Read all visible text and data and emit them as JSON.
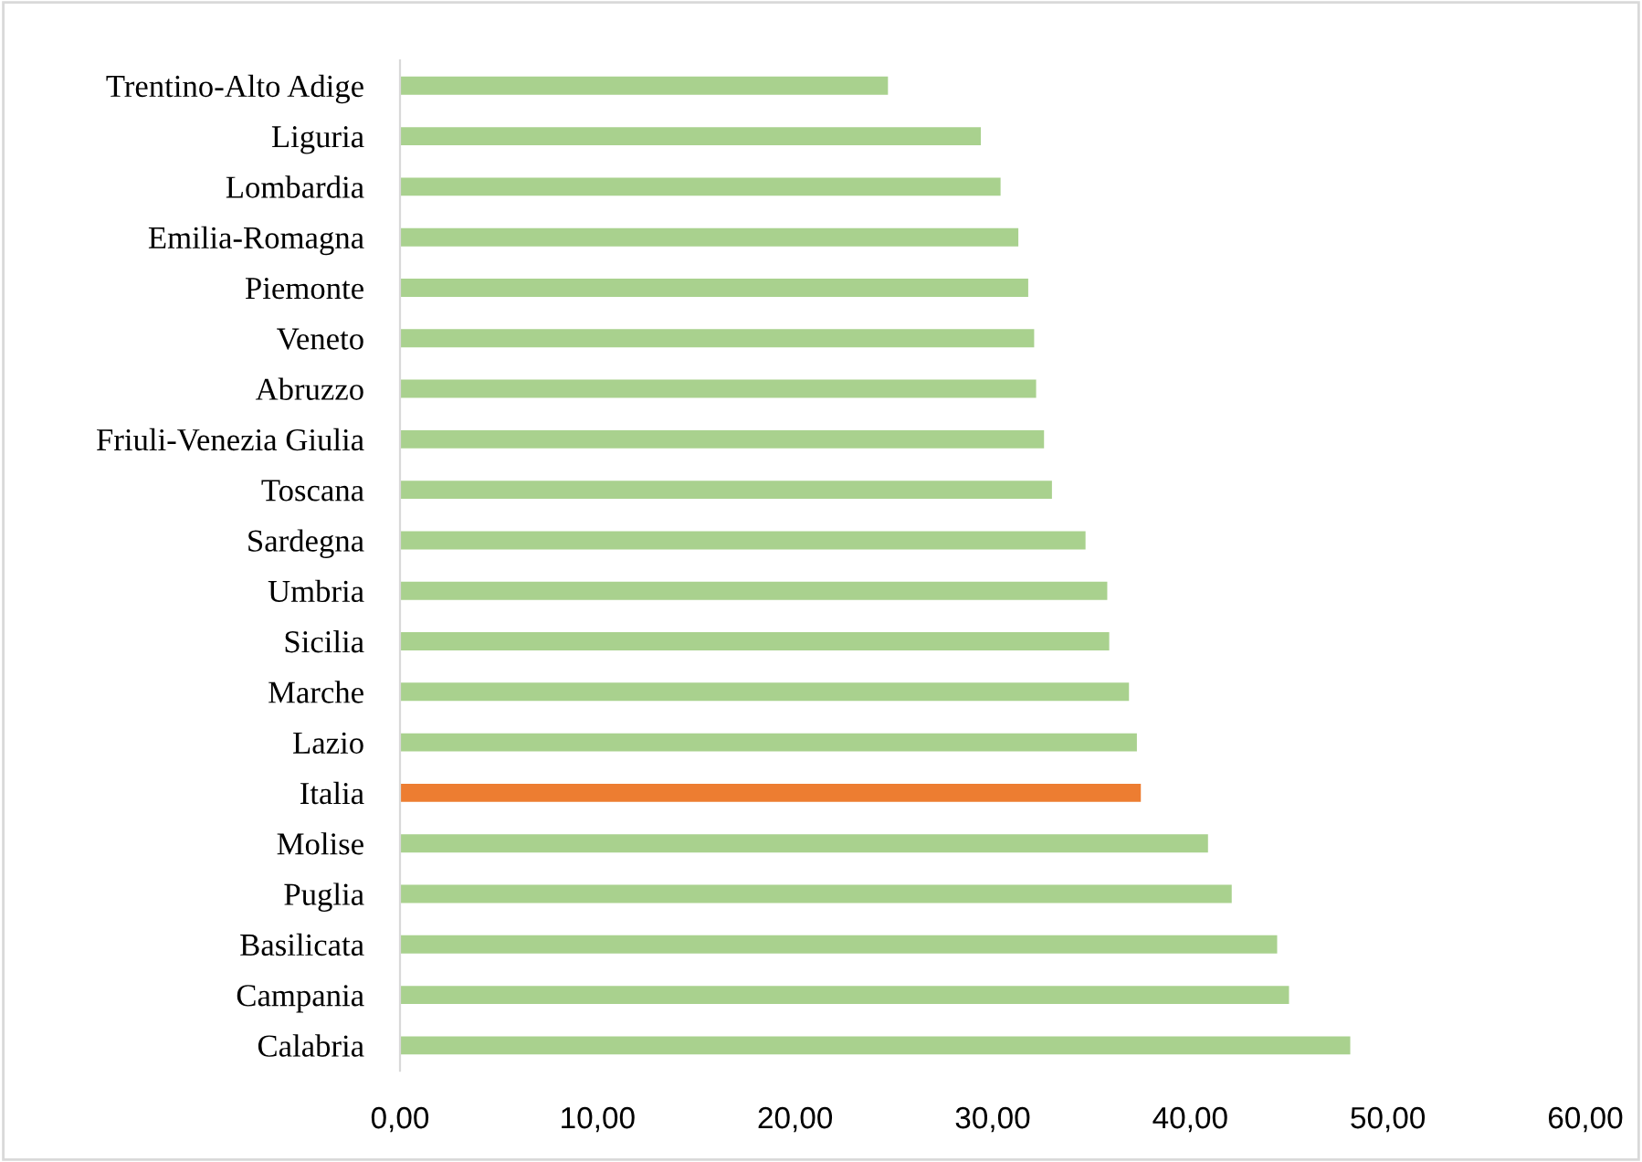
{
  "chart_data": {
    "type": "bar",
    "orientation": "horizontal",
    "categories": [
      "Trentino-Alto Adige",
      "Liguria",
      "Lombardia",
      "Emilia-Romagna",
      "Piemonte",
      "Veneto",
      "Abruzzo",
      "Friuli-Venezia Giulia",
      "Toscana",
      "Sardegna",
      "Umbria",
      "Sicilia",
      "Marche",
      "Lazio",
      "Italia",
      "Molise",
      "Puglia",
      "Basilicata",
      "Campania",
      "Calabria"
    ],
    "values": [
      24.7,
      29.4,
      30.4,
      31.3,
      31.8,
      32.1,
      32.2,
      32.6,
      33.0,
      34.7,
      35.8,
      35.9,
      36.9,
      37.3,
      37.5,
      40.9,
      42.1,
      44.4,
      45.0,
      48.1
    ],
    "colors": [
      "#a9d18e",
      "#a9d18e",
      "#a9d18e",
      "#a9d18e",
      "#a9d18e",
      "#a9d18e",
      "#a9d18e",
      "#a9d18e",
      "#a9d18e",
      "#a9d18e",
      "#a9d18e",
      "#a9d18e",
      "#a9d18e",
      "#a9d18e",
      "#ed7d31",
      "#a9d18e",
      "#a9d18e",
      "#a9d18e",
      "#a9d18e",
      "#a9d18e"
    ],
    "xlim": [
      0,
      60
    ],
    "xticks": [
      {
        "value": 0,
        "label": "0,00"
      },
      {
        "value": 10,
        "label": "10,00"
      },
      {
        "value": 20,
        "label": "20,00"
      },
      {
        "value": 30,
        "label": "30,00"
      },
      {
        "value": 40,
        "label": "40,00"
      },
      {
        "value": 50,
        "label": "50,00"
      },
      {
        "value": 60,
        "label": "60,00"
      }
    ],
    "grid": false,
    "legend": false
  }
}
